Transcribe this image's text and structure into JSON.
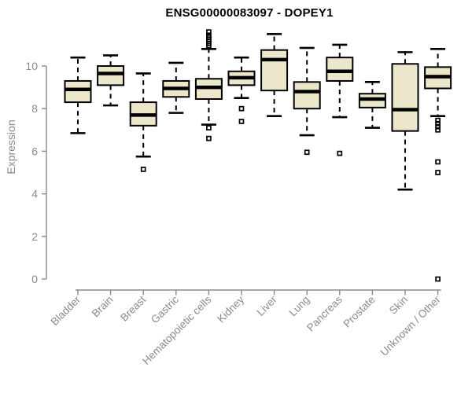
{
  "title": "ENSG00000083097 - DOPEY1",
  "colors": {
    "box_fill": "#ECE7CB",
    "box_stroke": "#000000",
    "median": "#000000",
    "axis": "#8a8a8a",
    "title_text": "#000000",
    "background": "#ffffff"
  },
  "chart_data": {
    "type": "boxplot",
    "title": "ENSG00000083097 - DOPEY1",
    "xlabel": "",
    "ylabel": "Expression",
    "y_ticks": [
      0,
      2,
      4,
      6,
      8,
      10
    ],
    "ylim": [
      -0.5,
      11.7
    ],
    "grid": false,
    "legend": "none",
    "categories": [
      "Bladder",
      "Brain",
      "Breast",
      "Gastric",
      "Hematopoietic cells",
      "Kidney",
      "Liver",
      "Lung",
      "Pancreas",
      "Prostate",
      "Skin",
      "Unknown / Other"
    ],
    "series": [
      {
        "name": "Bladder",
        "whisker_low": 6.85,
        "q1": 8.3,
        "median": 8.9,
        "q3": 9.3,
        "whisker_high": 10.4,
        "outliers": []
      },
      {
        "name": "Brain",
        "whisker_low": 8.15,
        "q1": 9.1,
        "median": 9.65,
        "q3": 10.0,
        "whisker_high": 10.5,
        "outliers": []
      },
      {
        "name": "Breast",
        "whisker_low": 5.75,
        "q1": 7.2,
        "median": 7.7,
        "q3": 8.3,
        "whisker_high": 9.65,
        "outliers": [
          5.15
        ]
      },
      {
        "name": "Gastric",
        "whisker_low": 7.8,
        "q1": 8.55,
        "median": 8.95,
        "q3": 9.3,
        "whisker_high": 10.15,
        "outliers": []
      },
      {
        "name": "Hematopoietic cells",
        "whisker_low": 7.25,
        "q1": 8.45,
        "median": 9.0,
        "q3": 9.4,
        "whisker_high": 10.8,
        "outliers": [
          11.6,
          11.45,
          11.35,
          11.25,
          11.15,
          11.05,
          10.95,
          7.1,
          6.6
        ]
      },
      {
        "name": "Kidney",
        "whisker_low": 8.5,
        "q1": 9.1,
        "median": 9.45,
        "q3": 9.75,
        "whisker_high": 10.4,
        "outliers": [
          8.0,
          7.4
        ]
      },
      {
        "name": "Liver",
        "whisker_low": 7.65,
        "q1": 8.85,
        "median": 10.3,
        "q3": 10.75,
        "whisker_high": 11.5,
        "outliers": []
      },
      {
        "name": "Lung",
        "whisker_low": 6.75,
        "q1": 8.0,
        "median": 8.8,
        "q3": 9.25,
        "whisker_high": 10.85,
        "outliers": [
          5.95
        ]
      },
      {
        "name": "Pancreas",
        "whisker_low": 7.6,
        "q1": 9.3,
        "median": 9.75,
        "q3": 10.4,
        "whisker_high": 11.0,
        "outliers": [
          5.9
        ]
      },
      {
        "name": "Prostate",
        "whisker_low": 7.1,
        "q1": 8.05,
        "median": 8.45,
        "q3": 8.7,
        "whisker_high": 9.25,
        "outliers": []
      },
      {
        "name": "Skin",
        "whisker_low": 4.2,
        "q1": 6.95,
        "median": 7.95,
        "q3": 10.1,
        "whisker_high": 10.65,
        "outliers": []
      },
      {
        "name": "Unknown / Other",
        "whisker_low": 7.65,
        "q1": 8.95,
        "median": 9.5,
        "q3": 9.95,
        "whisker_high": 10.8,
        "outliers": [
          7.45,
          7.3,
          7.15,
          7.0,
          5.5,
          5.0,
          0.0
        ]
      }
    ]
  }
}
